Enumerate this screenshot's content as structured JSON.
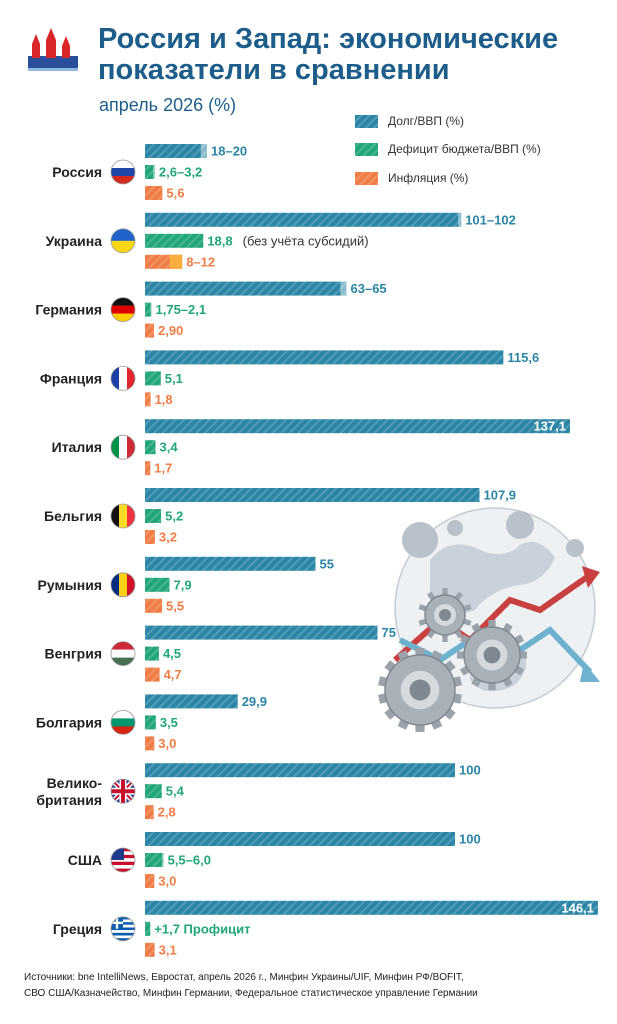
{
  "header": {
    "title": "Россия и Запад: экономические\nпоказатели в сравнении",
    "subtitle": "апрель 2026 (%)"
  },
  "colors": {
    "debt": "#2b86a6",
    "deficit": "#21a67a",
    "inflation": "#ef7d45",
    "inflation_alt": "#f6ae3c",
    "title": "#1d5d8a"
  },
  "chart_data": {
    "type": "bar",
    "orientation": "horizontal",
    "series": [
      {
        "key": "debt",
        "name": "Долг/ВВП (%)"
      },
      {
        "key": "deficit",
        "name": "Дефицит бюджета/ВВП (%)"
      },
      {
        "key": "inflation",
        "name": "Инфляция (%)"
      }
    ],
    "xlim": [
      0,
      150
    ],
    "legend_position": "top-right",
    "countries": [
      {
        "name": "Россия",
        "flag": "flag-russia",
        "debt": [
          18,
          20
        ],
        "debt_label": "18–20",
        "deficit": [
          2.6,
          3.2
        ],
        "deficit_label": "2,6–3,2",
        "inflation": 5.6,
        "inflation_label": "5,6"
      },
      {
        "name": "Украина",
        "flag": "flag-ukraine",
        "debt": [
          101,
          102
        ],
        "debt_label": "101–102",
        "deficit": 18.8,
        "deficit_label": "18,8",
        "deficit_note": "(без учёта субсидий)",
        "inflation": [
          8,
          12
        ],
        "inflation_label": "8–12"
      },
      {
        "name": "Германия",
        "flag": "flag-germany",
        "debt": [
          63,
          65
        ],
        "debt_label": "63–65",
        "deficit": [
          1.75,
          2.1
        ],
        "deficit_label": "1,75–2,1",
        "inflation": 2.9,
        "inflation_label": "2,90"
      },
      {
        "name": "Франция",
        "flag": "flag-france",
        "debt": 115.6,
        "debt_label": "115,6",
        "deficit": 5.1,
        "deficit_label": "5,1",
        "inflation": 1.8,
        "inflation_label": "1,8"
      },
      {
        "name": "Италия",
        "flag": "flag-italy",
        "debt": 137.1,
        "debt_label": "137,1",
        "deficit": 3.4,
        "deficit_label": "3,4",
        "inflation": 1.7,
        "inflation_label": "1,7"
      },
      {
        "name": "Бельгия",
        "flag": "flag-belgium",
        "debt": 107.9,
        "debt_label": "107,9",
        "deficit": 5.2,
        "deficit_label": "5,2",
        "inflation": 3.2,
        "inflation_label": "3,2"
      },
      {
        "name": "Румыния",
        "flag": "flag-romania",
        "debt": 55,
        "debt_label": "55",
        "deficit": 7.9,
        "deficit_label": "7,9",
        "inflation": 5.5,
        "inflation_label": "5,5"
      },
      {
        "name": "Венгрия",
        "flag": "flag-hungary",
        "debt": 75,
        "debt_label": "75",
        "deficit": 4.5,
        "deficit_label": "4,5",
        "inflation": 4.7,
        "inflation_label": "4,7"
      },
      {
        "name": "Болгария",
        "flag": "flag-bulgaria",
        "debt": 29.9,
        "debt_label": "29,9",
        "deficit": 3.5,
        "deficit_label": "3,5",
        "inflation": 3.0,
        "inflation_label": "3,0"
      },
      {
        "name": "Велико-\nбритания",
        "flag": "flag-uk",
        "debt": 100,
        "debt_label": "100",
        "deficit": 5.4,
        "deficit_label": "5,4",
        "inflation": 2.8,
        "inflation_label": "2,8"
      },
      {
        "name": "США",
        "flag": "flag-usa",
        "debt": 100,
        "debt_label": "100",
        "deficit": [
          5.5,
          6.0
        ],
        "deficit_label": "5,5–6,0",
        "inflation": 3.0,
        "inflation_label": "3,0"
      },
      {
        "name": "Греция",
        "flag": "flag-greece",
        "debt": 146.1,
        "debt_label": "146,1",
        "deficit": 1.7,
        "deficit_label": "+1,7 Профицит",
        "inflation": 3.1,
        "inflation_label": "3,1"
      }
    ]
  },
  "illustration": "gears-globe-arrows",
  "sources": "Источники: bne IntelliNews, Евростат, апрель 2026 г., Минфин Украины/UIF, Минфин РФ/BOFIT,\nСВО США/Казначейство, Минфин Германии, Федеральное статистическое управление Германии"
}
